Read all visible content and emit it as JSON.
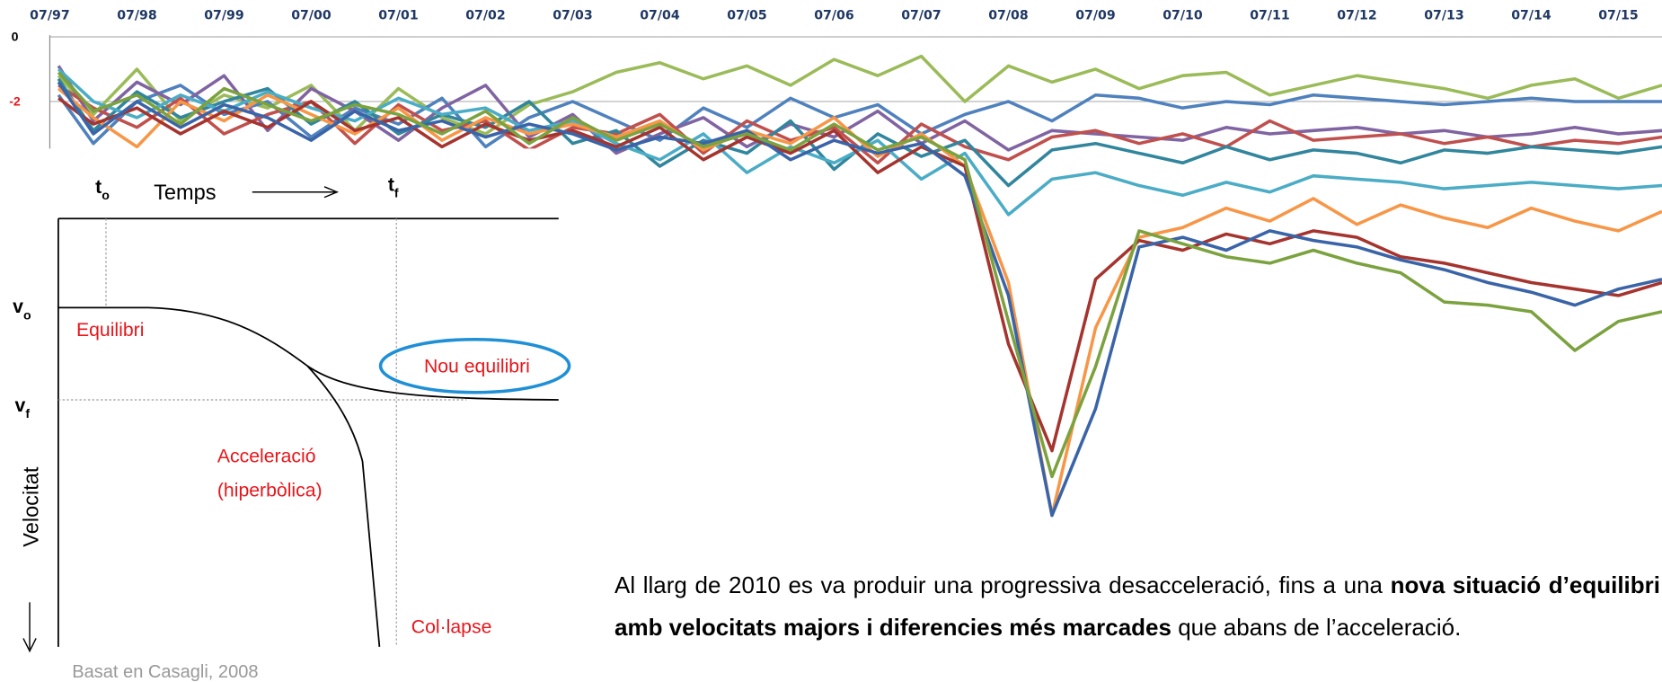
{
  "chart_data": {
    "type": "line",
    "x": [
      1997.6,
      1998,
      1998.5,
      1999,
      1999.5,
      2000,
      2000.5,
      2001,
      2001.5,
      2002,
      2002.5,
      2003,
      2003.5,
      2004,
      2004.5,
      2005,
      2005.5,
      2006,
      2006.5,
      2007,
      2007.5,
      2008,
      2008.5,
      2009,
      2009.5,
      2010,
      2010.5,
      2011,
      2011.5,
      2012,
      2012.5,
      2013,
      2013.5,
      2014,
      2014.5,
      2015,
      2015.5,
      2016
    ],
    "xlim": [
      1997.5,
      2016.0
    ],
    "xticks": [
      {
        "value": 1997.5,
        "label": "07/97"
      },
      {
        "value": 1998.5,
        "label": "07/98"
      },
      {
        "value": 1999.5,
        "label": "07/99"
      },
      {
        "value": 2000.5,
        "label": "07/00"
      },
      {
        "value": 2001.5,
        "label": "07/01"
      },
      {
        "value": 2002.5,
        "label": "07/02"
      },
      {
        "value": 2003.5,
        "label": "07/03"
      },
      {
        "value": 2004.5,
        "label": "07/04"
      },
      {
        "value": 2005.5,
        "label": "07/05"
      },
      {
        "value": 2006.5,
        "label": "07/06"
      },
      {
        "value": 2007.5,
        "label": "07/07"
      },
      {
        "value": 2008.5,
        "label": "07/08"
      },
      {
        "value": 2009.5,
        "label": "07/09"
      },
      {
        "value": 2010.5,
        "label": "07/10"
      },
      {
        "value": 2011.5,
        "label": "07/11"
      },
      {
        "value": 2012.5,
        "label": "07/12"
      },
      {
        "value": 2013.5,
        "label": "07/13"
      },
      {
        "value": 2014.5,
        "label": "07/14"
      },
      {
        "value": 2015.5,
        "label": "07/15"
      }
    ],
    "ylim": [
      -14.8,
      0.15
    ],
    "yticks": [
      0,
      -2
    ],
    "grid": true,
    "series": [
      {
        "color": "#9bbb59",
        "values": [
          -1.2,
          -2.4,
          -1.0,
          -2.6,
          -1.8,
          -2.2,
          -1.5,
          -2.9,
          -1.6,
          -2.5,
          -3.0,
          -2.1,
          -1.7,
          -1.1,
          -0.8,
          -1.3,
          -0.9,
          -1.5,
          -0.7,
          -1.2,
          -0.6,
          -2.0,
          -0.9,
          -1.4,
          -1.0,
          -1.6,
          -1.2,
          -1.1,
          -1.8,
          -1.5,
          -1.2,
          -1.4,
          -1.6,
          -1.9,
          -1.5,
          -1.3,
          -1.9,
          -1.5
        ]
      },
      {
        "color": "#4f81bd",
        "values": [
          -1.8,
          -3.3,
          -2.0,
          -1.5,
          -2.4,
          -2.0,
          -3.1,
          -2.2,
          -2.7,
          -1.9,
          -3.4,
          -2.5,
          -2.0,
          -2.6,
          -3.2,
          -2.2,
          -2.8,
          -1.9,
          -2.5,
          -2.1,
          -3.0,
          -2.4,
          -2.0,
          -2.6,
          -1.8,
          -1.9,
          -2.2,
          -2.0,
          -2.1,
          -1.8,
          -1.9,
          -2.0,
          -2.1,
          -2.0,
          -1.9,
          -2.0,
          -2.0,
          -2.0
        ]
      },
      {
        "color": "#8064a2",
        "values": [
          -0.9,
          -2.6,
          -1.4,
          -2.1,
          -1.2,
          -2.9,
          -1.6,
          -2.3,
          -3.2,
          -2.2,
          -1.5,
          -3.1,
          -2.4,
          -3.6,
          -3.0,
          -2.5,
          -3.4,
          -2.7,
          -3.1,
          -2.3,
          -3.3,
          -2.6,
          -3.5,
          -2.9,
          -3.0,
          -3.1,
          -3.2,
          -2.8,
          -3.0,
          -2.9,
          -2.8,
          -3.0,
          -2.9,
          -3.1,
          -3.0,
          -2.8,
          -3.0,
          -2.9
        ]
      },
      {
        "color": "#c0504d",
        "values": [
          -1.5,
          -2.2,
          -2.8,
          -1.9,
          -3.0,
          -2.4,
          -2.0,
          -3.3,
          -2.1,
          -2.9,
          -2.6,
          -3.5,
          -2.8,
          -3.0,
          -2.4,
          -3.6,
          -2.6,
          -3.2,
          -2.8,
          -3.9,
          -2.7,
          -3.4,
          -3.8,
          -3.1,
          -2.9,
          -3.3,
          -3.0,
          -3.4,
          -2.6,
          -3.2,
          -3.1,
          -3.0,
          -3.3,
          -3.1,
          -3.4,
          -3.2,
          -3.3,
          -3.1
        ]
      },
      {
        "color": "#31859c",
        "values": [
          -1.3,
          -2.9,
          -1.7,
          -2.5,
          -2.0,
          -1.6,
          -2.7,
          -2.0,
          -3.0,
          -2.4,
          -2.8,
          -2.0,
          -3.3,
          -2.9,
          -4.0,
          -3.2,
          -3.6,
          -2.6,
          -4.1,
          -3.0,
          -3.7,
          -3.2,
          -4.6,
          -3.5,
          -3.3,
          -3.6,
          -3.9,
          -3.4,
          -3.8,
          -3.5,
          -3.6,
          -3.9,
          -3.5,
          -3.6,
          -3.4,
          -3.5,
          -3.6,
          -3.4
        ]
      },
      {
        "color": "#4bacc6",
        "values": [
          -1.0,
          -2.0,
          -2.5,
          -1.8,
          -2.3,
          -1.7,
          -2.2,
          -2.6,
          -1.9,
          -2.4,
          -2.2,
          -2.9,
          -2.6,
          -3.3,
          -3.8,
          -3.0,
          -4.2,
          -3.4,
          -3.9,
          -3.2,
          -4.4,
          -3.6,
          -5.5,
          -4.4,
          -4.2,
          -4.6,
          -4.9,
          -4.5,
          -4.8,
          -4.3,
          -4.4,
          -4.5,
          -4.7,
          -4.6,
          -4.5,
          -4.6,
          -4.7,
          -4.6
        ]
      },
      {
        "color": "#f79646",
        "values": [
          -1.6,
          -2.5,
          -3.4,
          -2.0,
          -2.6,
          -1.8,
          -2.4,
          -3.0,
          -2.2,
          -3.2,
          -2.5,
          -3.0,
          -2.7,
          -3.1,
          -2.6,
          -3.5,
          -2.9,
          -3.3,
          -2.5,
          -3.7,
          -3.0,
          -4.0,
          -7.6,
          -14.8,
          -9.0,
          -6.2,
          -5.9,
          -5.3,
          -5.7,
          -5.0,
          -5.8,
          -5.2,
          -5.6,
          -5.9,
          -5.3,
          -5.7,
          -6.0,
          -5.4
        ]
      },
      {
        "color": "#a5342f",
        "values": [
          -1.9,
          -2.7,
          -2.2,
          -3.0,
          -2.3,
          -2.8,
          -2.0,
          -2.9,
          -2.5,
          -3.4,
          -2.7,
          -3.2,
          -2.9,
          -3.4,
          -2.8,
          -3.8,
          -3.1,
          -3.6,
          -2.9,
          -4.2,
          -3.4,
          -4.0,
          -9.5,
          -12.8,
          -7.5,
          -6.3,
          -6.6,
          -6.1,
          -6.4,
          -6.0,
          -6.2,
          -6.8,
          -7.0,
          -7.3,
          -7.6,
          -7.8,
          -8.0,
          -7.6
        ]
      },
      {
        "color": "#3a64a8",
        "values": [
          -1.4,
          -3.0,
          -2.0,
          -2.8,
          -2.1,
          -2.5,
          -3.2,
          -2.3,
          -2.9,
          -2.6,
          -3.1,
          -2.7,
          -3.0,
          -3.5,
          -3.1,
          -3.3,
          -2.9,
          -3.8,
          -3.2,
          -3.6,
          -3.3,
          -4.3,
          -8.0,
          -14.8,
          -11.5,
          -6.5,
          -6.2,
          -6.6,
          -6.0,
          -6.3,
          -6.5,
          -6.9,
          -7.2,
          -7.6,
          -7.9,
          -8.3,
          -7.8,
          -7.5
        ]
      },
      {
        "color": "#7ba23f",
        "values": [
          -1.1,
          -2.3,
          -1.8,
          -2.7,
          -1.6,
          -2.1,
          -2.6,
          -2.1,
          -2.4,
          -3.0,
          -2.3,
          -3.3,
          -2.5,
          -3.2,
          -2.7,
          -3.4,
          -3.0,
          -3.5,
          -2.7,
          -3.5,
          -3.1,
          -3.8,
          -8.8,
          -13.6,
          -10.2,
          -6.0,
          -6.4,
          -6.8,
          -7.0,
          -6.6,
          -7.0,
          -7.3,
          -8.2,
          -8.3,
          -8.5,
          -9.7,
          -8.8,
          -8.5
        ]
      }
    ]
  },
  "diagram": {
    "t_start": {
      "main": "t",
      "sub": "o"
    },
    "time_label": "Temps",
    "t_end": {
      "main": "t",
      "sub": "f"
    },
    "v_start": {
      "main": "v",
      "sub": "o"
    },
    "v_end": {
      "main": "v",
      "sub": "f"
    },
    "velocity_label": "Velocitat",
    "phases": [
      "Equilibri",
      "Nou equilibri",
      "Acceleració",
      "(hiperbòlica)",
      "Col·lapse"
    ],
    "source": "Basat en Casagli, 2008"
  },
  "paragraph": {
    "start": "Al llarg de 2010 es va produir una progressiva desacceleració, fins a una ",
    "bold": "nova situació d’equilibri amb velocitats majors i diferencies més marcades",
    "end": " que abans de l’acceleració."
  }
}
